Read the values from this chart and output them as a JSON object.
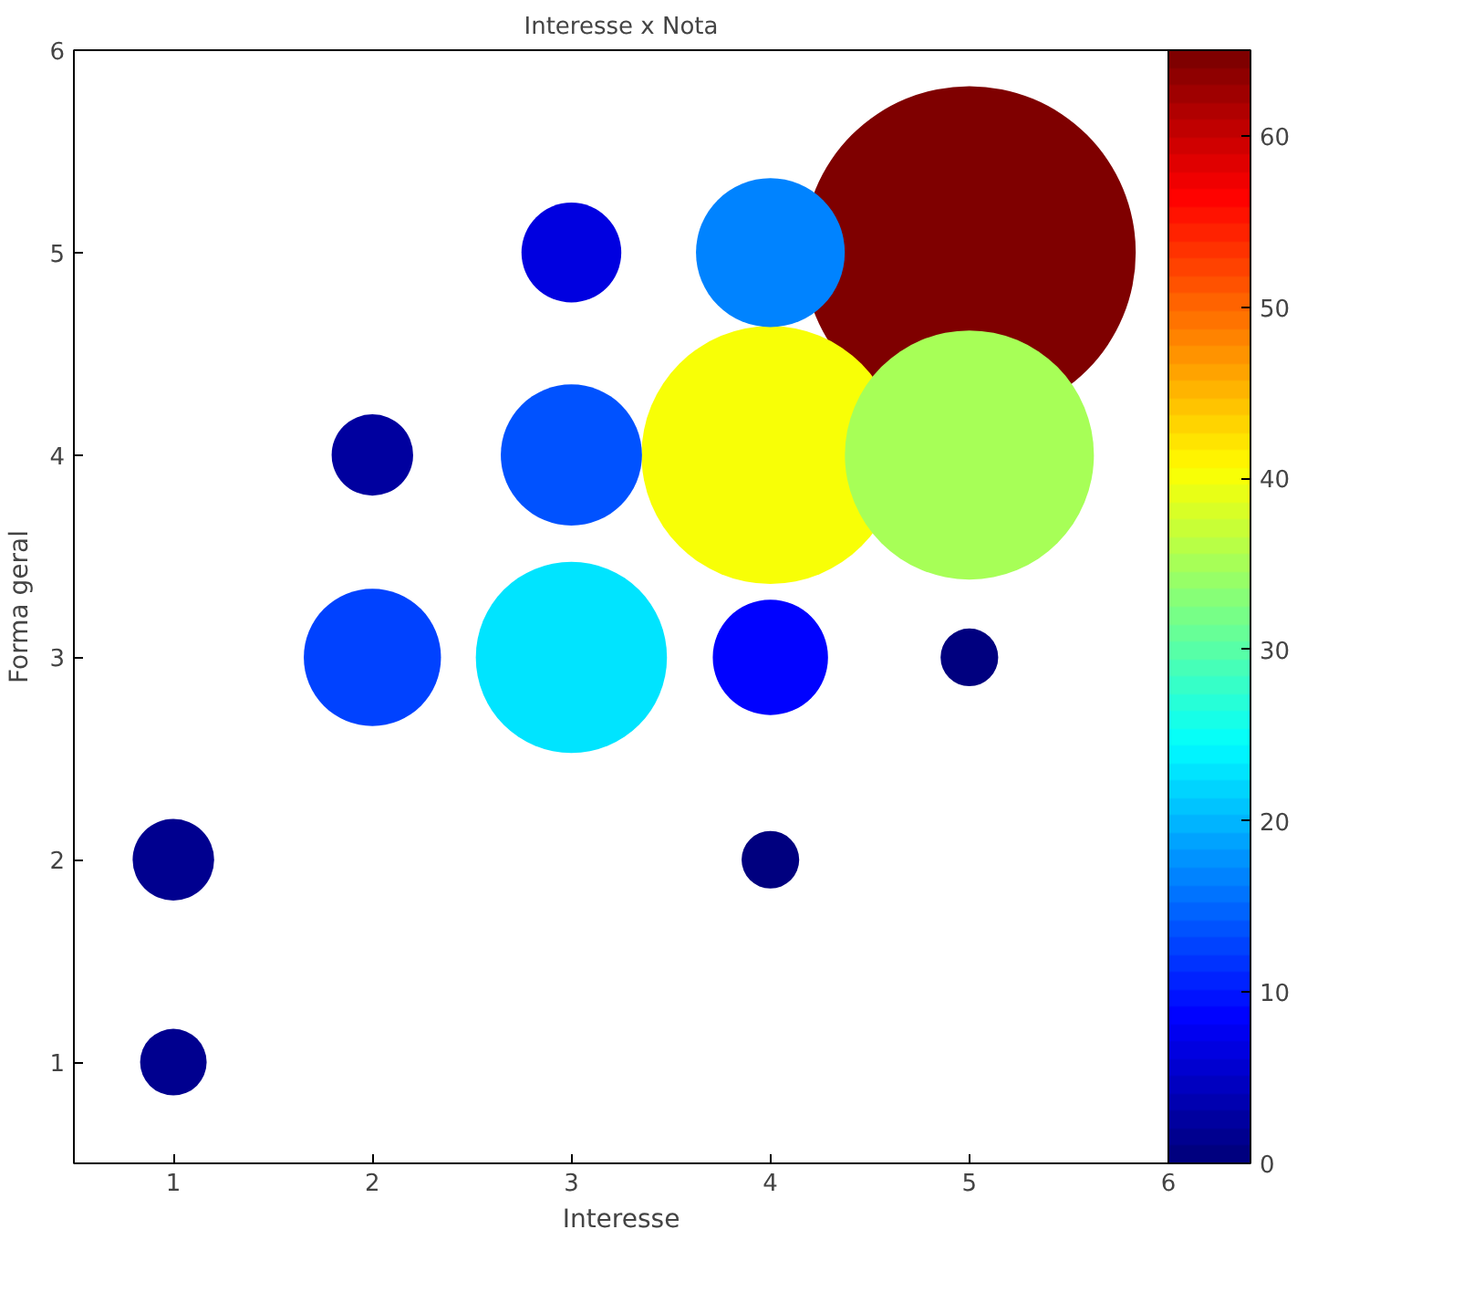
{
  "chart_data": {
    "type": "bubble",
    "title": "Interesse x Nota",
    "xlabel": "Interesse",
    "ylabel": "Forma geral",
    "x": [
      1,
      1,
      2,
      2,
      3,
      3,
      3,
      4,
      4,
      4,
      4,
      5,
      5,
      5
    ],
    "values": [
      1,
      2,
      3,
      4,
      3,
      4,
      5,
      2,
      3,
      4,
      5,
      3,
      4,
      5
    ],
    "sizes": [
      0.04,
      0.06,
      0.17,
      0.06,
      0.33,
      0.18,
      0.09,
      0.03,
      0.12,
      0.6,
      0.2,
      0.03,
      0.56,
      1
    ],
    "cvalues": [
      2,
      2,
      13,
      3,
      23,
      14,
      7,
      1,
      9,
      40,
      17,
      1,
      35,
      65
    ],
    "clim": [
      0,
      65
    ],
    "cticks": [
      0,
      10,
      20,
      30,
      40,
      50,
      60
    ],
    "xlim": [
      0.5,
      6
    ],
    "ylim": [
      0.5,
      6
    ],
    "xticks": [
      1,
      2,
      3,
      4,
      5,
      6
    ],
    "yticks": [
      1,
      2,
      3,
      4,
      5,
      6
    ]
  }
}
